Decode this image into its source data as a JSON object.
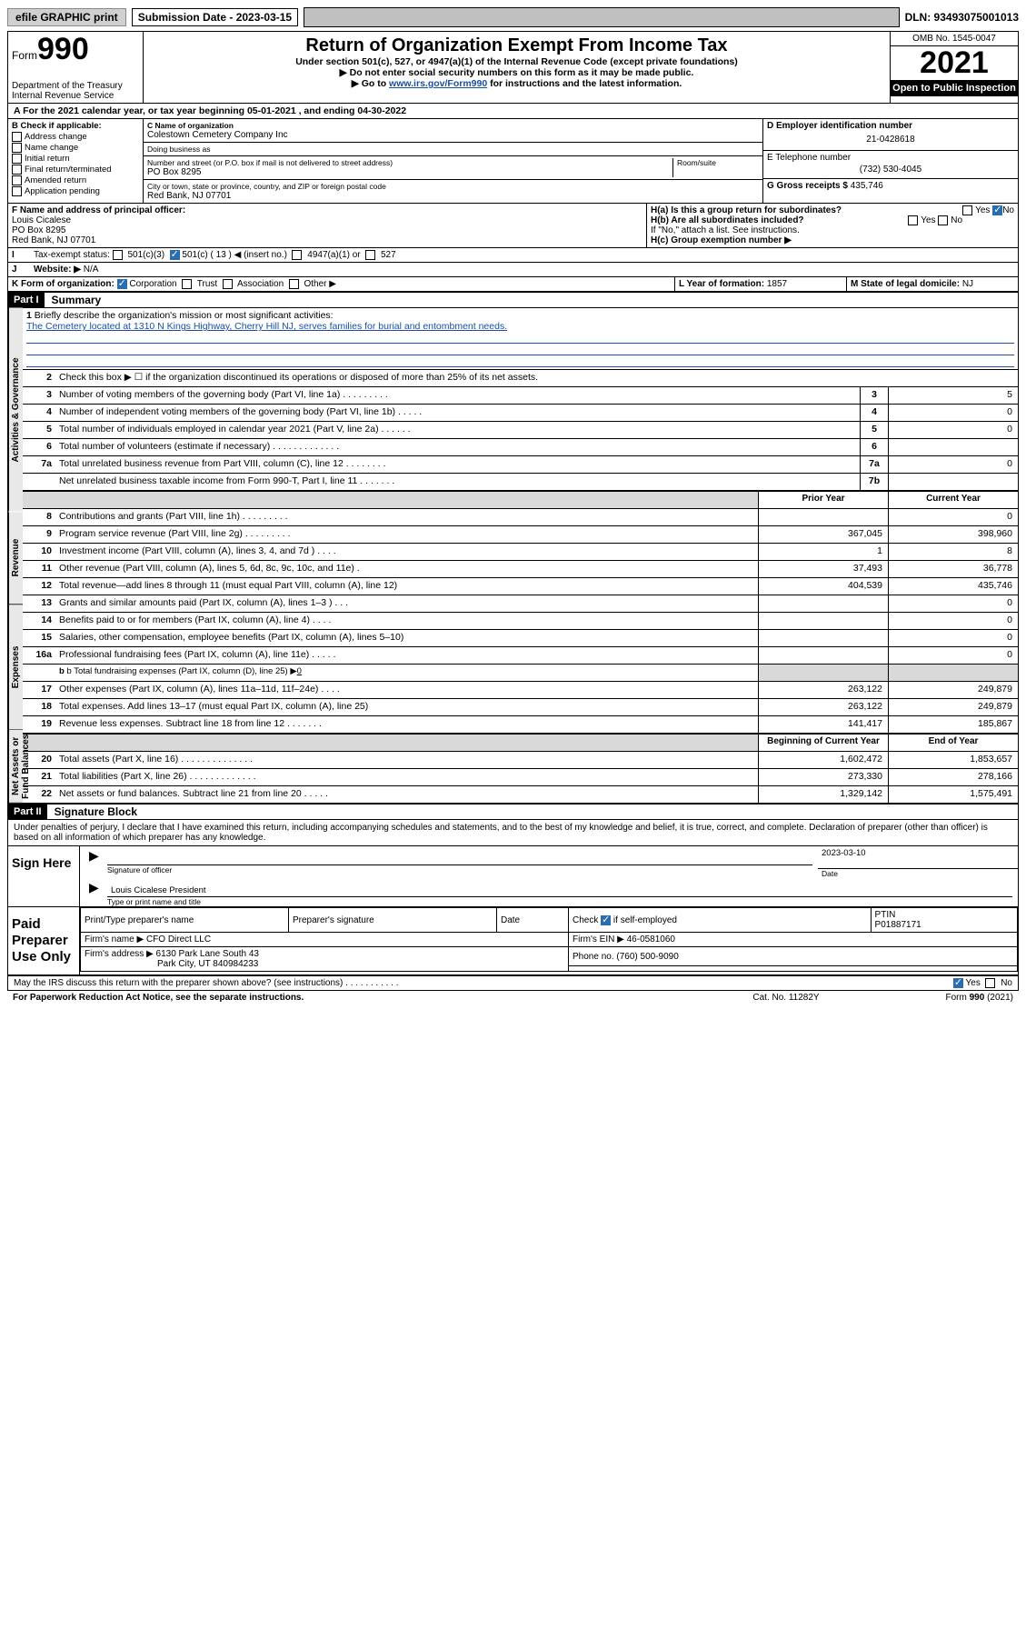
{
  "topbar": {
    "efile_label": "efile GRAPHIC print",
    "submission_label": "Submission Date - 2023-03-15",
    "dln": "DLN: 93493075001013"
  },
  "header": {
    "form_label_small": "Form",
    "form_label_big": "990",
    "title": "Return of Organization Exempt From Income Tax",
    "subtitle1": "Under section 501(c), 527, or 4947(a)(1) of the Internal Revenue Code (except private foundations)",
    "subtitle2": "▶ Do not enter social security numbers on this form as it may be made public.",
    "subtitle3_pre": "▶ Go to ",
    "subtitle3_link": "www.irs.gov/Form990",
    "subtitle3_post": " for instructions and the latest information.",
    "dept": "Department of the Treasury",
    "irs": "Internal Revenue Service",
    "omb": "OMB No. 1545-0047",
    "year": "2021",
    "open": "Open to Public Inspection"
  },
  "lineA": "For the 2021 calendar year, or tax year beginning 05-01-2021   , and ending 04-30-2022",
  "boxB": {
    "title": "B Check if applicable:",
    "opts": [
      "Address change",
      "Name change",
      "Initial return",
      "Final return/terminated",
      "Amended return",
      "Application pending"
    ]
  },
  "boxC": {
    "name_label": "C Name of organization",
    "name": "Colestown Cemetery Company Inc",
    "dba_label": "Doing business as",
    "dba": "",
    "addr_label": "Number and street (or P.O. box if mail is not delivered to street address)",
    "room_label": "Room/suite",
    "addr": "PO Box 8295",
    "city_label": "City or town, state or province, country, and ZIP or foreign postal code",
    "city": "Red Bank, NJ  07701"
  },
  "boxD": {
    "label": "D Employer identification number",
    "value": "21-0428618"
  },
  "boxE": {
    "label": "E Telephone number",
    "value": "(732) 530-4045"
  },
  "boxG": {
    "label": "G Gross receipts $",
    "value": "435,746"
  },
  "boxF": {
    "label": "F Name and address of principal officer:",
    "name": "Louis Cicalese",
    "addr1": "PO Box 8295",
    "addr2": "Red Bank, NJ  07701"
  },
  "boxH": {
    "a": "H(a)  Is this a group return for subordinates?",
    "a_yes": "Yes",
    "a_no": "No",
    "b": "H(b)  Are all subordinates included?",
    "b_note": "If \"No,\" attach a list. See instructions.",
    "c": "H(c)  Group exemption number ▶"
  },
  "lineI": {
    "label": "Tax-exempt status:",
    "o1": "501(c)(3)",
    "o2": "501(c) ( 13 ) ◀ (insert no.)",
    "o3": "4947(a)(1) or",
    "o4": "527"
  },
  "lineJ": {
    "label": "Website: ▶",
    "value": "N/A"
  },
  "lineK": {
    "label": "K Form of organization:",
    "o1": "Corporation",
    "o2": "Trust",
    "o3": "Association",
    "o4": "Other ▶"
  },
  "lineL": {
    "label": "L Year of formation:",
    "value": "1857"
  },
  "lineM": {
    "label": "M State of legal domicile:",
    "value": "NJ"
  },
  "part1": {
    "code": "Part I",
    "title": "Summary"
  },
  "summary": {
    "side_labels": [
      "Activities & Governance",
      "Revenue",
      "Expenses",
      "Net Assets or Fund Balances"
    ],
    "l1_label": "Briefly describe the organization's mission or most significant activities:",
    "l1_text": "The Cemetery located at 1310 N Kings Highway, Cherry Hill NJ, serves families for burial and entombment needs.",
    "l2": "Check this box ▶ ☐ if the organization discontinued its operations or disposed of more than 25% of its net assets.",
    "rows_single": [
      {
        "n": "3",
        "d": "Number of voting members of the governing body (Part VI, line 1a)  .  .  .  .  .  .  .  .  .",
        "k": "3",
        "v": "5"
      },
      {
        "n": "4",
        "d": "Number of independent voting members of the governing body (Part VI, line 1b)  .  .  .  .  .",
        "k": "4",
        "v": "0"
      },
      {
        "n": "5",
        "d": "Total number of individuals employed in calendar year 2021 (Part V, line 2a)  .  .  .  .  .  .",
        "k": "5",
        "v": "0"
      },
      {
        "n": "6",
        "d": "Total number of volunteers (estimate if necessary)  .  .  .  .  .  .  .  .  .  .  .  .  .",
        "k": "6",
        "v": ""
      },
      {
        "n": "7a",
        "d": "Total unrelated business revenue from Part VIII, column (C), line 12  .  .  .  .  .  .  .  .",
        "k": "7a",
        "v": "0"
      },
      {
        "n": "",
        "d": "Net unrelated business taxable income from Form 990-T, Part I, line 11  .  .  .  .  .  .  .",
        "k": "7b",
        "v": ""
      }
    ],
    "col_head_prior": "Prior Year",
    "col_head_current": "Current Year",
    "rows_dual": [
      {
        "n": "8",
        "d": "Contributions and grants (Part VIII, line 1h)  .  .  .  .  .  .  .  .  .",
        "p": "",
        "c": "0"
      },
      {
        "n": "9",
        "d": "Program service revenue (Part VIII, line 2g)  .  .  .  .  .  .  .  .  .",
        "p": "367,045",
        "c": "398,960"
      },
      {
        "n": "10",
        "d": "Investment income (Part VIII, column (A), lines 3, 4, and 7d )  .  .  .  .",
        "p": "1",
        "c": "8"
      },
      {
        "n": "11",
        "d": "Other revenue (Part VIII, column (A), lines 5, 6d, 8c, 9c, 10c, and 11e)  .",
        "p": "37,493",
        "c": "36,778"
      },
      {
        "n": "12",
        "d": "Total revenue—add lines 8 through 11 (must equal Part VIII, column (A), line 12)",
        "p": "404,539",
        "c": "435,746"
      },
      {
        "n": "13",
        "d": "Grants and similar amounts paid (Part IX, column (A), lines 1–3 )  .  .  .",
        "p": "",
        "c": "0"
      },
      {
        "n": "14",
        "d": "Benefits paid to or for members (Part IX, column (A), line 4)  .  .  .  .",
        "p": "",
        "c": "0"
      },
      {
        "n": "15",
        "d": "Salaries, other compensation, employee benefits (Part IX, column (A), lines 5–10)",
        "p": "",
        "c": "0"
      },
      {
        "n": "16a",
        "d": "Professional fundraising fees (Part IX, column (A), line 11e)  .  .  .  .  .",
        "p": "",
        "c": "0"
      }
    ],
    "l16b_label": "b  Total fundraising expenses (Part IX, column (D), line 25) ▶",
    "l16b_val": "0",
    "rows_dual2": [
      {
        "n": "17",
        "d": "Other expenses (Part IX, column (A), lines 11a–11d, 11f–24e)  .  .  .  .",
        "p": "263,122",
        "c": "249,879"
      },
      {
        "n": "18",
        "d": "Total expenses. Add lines 13–17 (must equal Part IX, column (A), line 25)",
        "p": "263,122",
        "c": "249,879"
      },
      {
        "n": "19",
        "d": "Revenue less expenses. Subtract line 18 from line 12  .  .  .  .  .  .  .",
        "p": "141,417",
        "c": "185,867"
      }
    ],
    "col_head_beg": "Beginning of Current Year",
    "col_head_end": "End of Year",
    "rows_net": [
      {
        "n": "20",
        "d": "Total assets (Part X, line 16)  .  .  .  .  .  .  .  .  .  .  .  .  .  .",
        "p": "1,602,472",
        "c": "1,853,657"
      },
      {
        "n": "21",
        "d": "Total liabilities (Part X, line 26)  .  .  .  .  .  .  .  .  .  .  .  .  .",
        "p": "273,330",
        "c": "278,166"
      },
      {
        "n": "22",
        "d": "Net assets or fund balances. Subtract line 21 from line 20  .  .  .  .  .",
        "p": "1,329,142",
        "c": "1,575,491"
      }
    ]
  },
  "part2": {
    "code": "Part II",
    "title": "Signature Block"
  },
  "sig": {
    "perjury": "Under penalties of perjury, I declare that I have examined this return, including accompanying schedules and statements, and to the best of my knowledge and belief, it is true, correct, and complete. Declaration of preparer (other than officer) is based on all information of which preparer has any knowledge.",
    "sign_here": "Sign Here",
    "date": "2023-03-10",
    "sig_officer_label": "Signature of officer",
    "date_label": "Date",
    "officer_name": "Louis Cicalese  President",
    "type_name_label": "Type or print name and title"
  },
  "paid": {
    "label": "Paid Preparer Use Only",
    "h1": "Print/Type preparer's name",
    "h2": "Preparer's signature",
    "h3": "Date",
    "h4_pre": "Check",
    "h4_post": "if self-employed",
    "h5": "PTIN",
    "ptin": "P01887171",
    "firm_name_label": "Firm's name   ▶",
    "firm_name": "CFO Direct LLC",
    "firm_ein_label": "Firm's EIN ▶",
    "firm_ein": "46-0581060",
    "firm_addr_label": "Firm's address ▶",
    "firm_addr1": "6130 Park Lane South 43",
    "firm_addr2": "Park City, UT  840984233",
    "phone_label": "Phone no.",
    "phone": "(760) 500-9090"
  },
  "footer": {
    "discuss": "May the IRS discuss this return with the preparer shown above? (see instructions)  .  .  .  .  .  .  .  .  .  .  .",
    "yes": "Yes",
    "no": "No",
    "paperwork": "For Paperwork Reduction Act Notice, see the separate instructions.",
    "cat": "Cat. No. 11282Y",
    "form": "Form 990 (2021)"
  }
}
